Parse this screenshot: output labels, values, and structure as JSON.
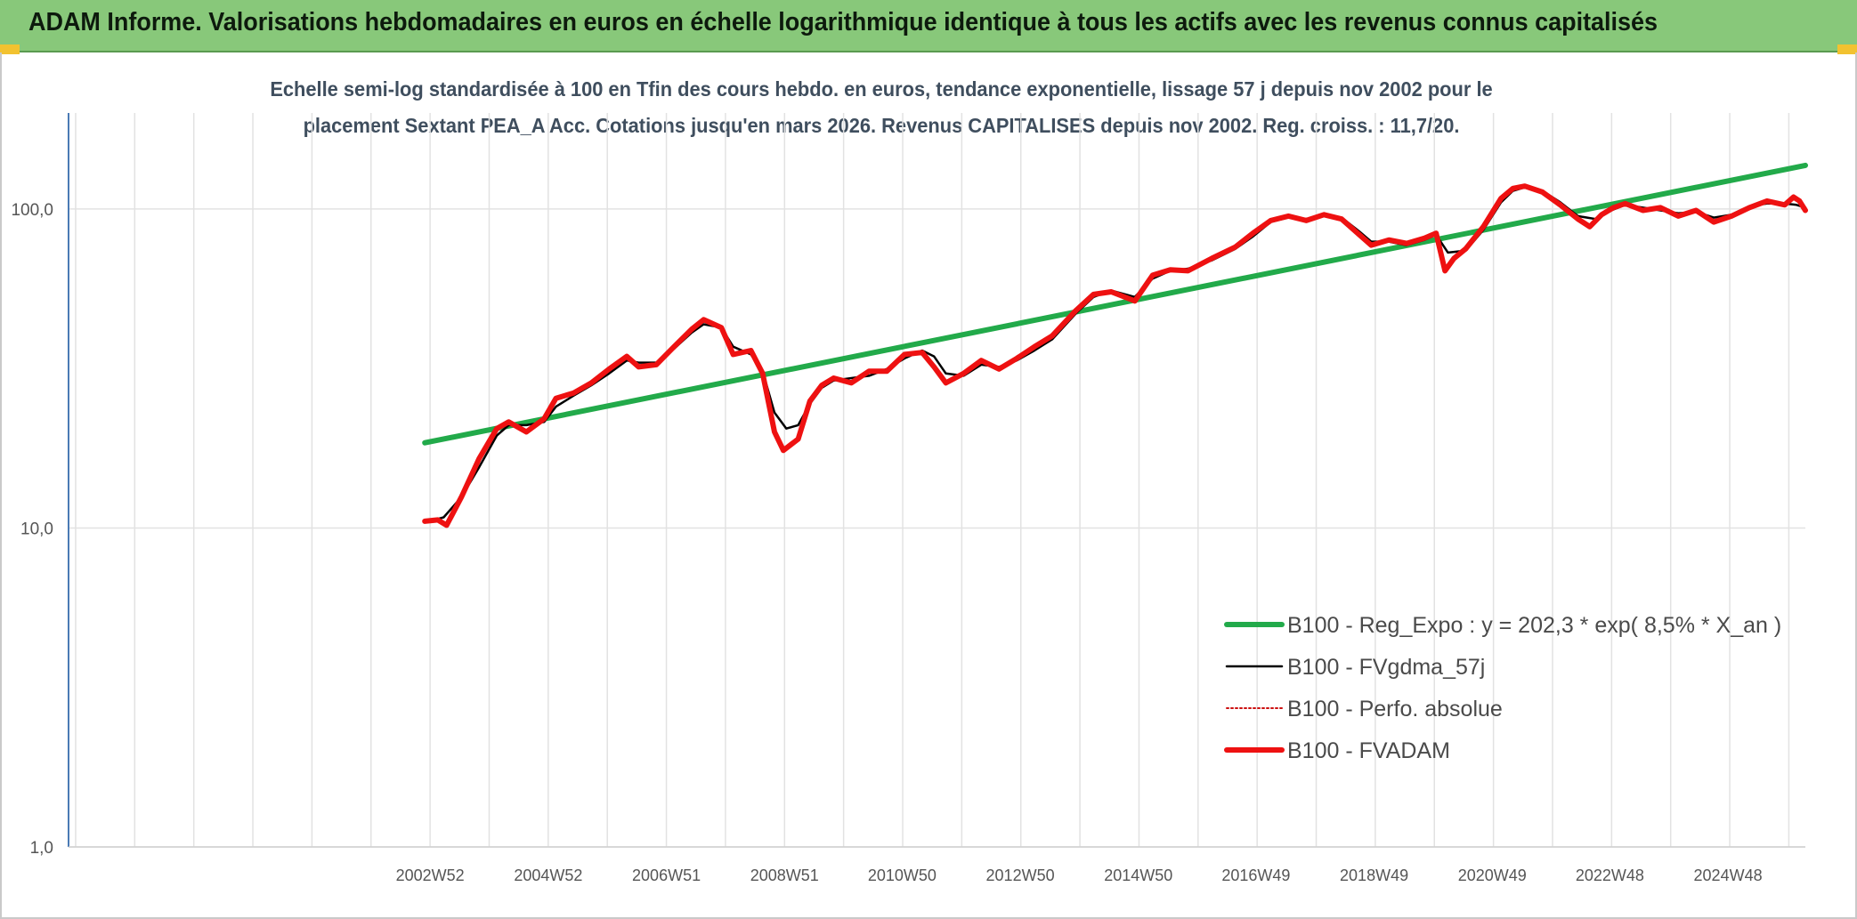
{
  "header": {
    "title": "ADAM Informe. Valorisations hebdomadaires en euros en échelle logarithmique identique à tous les actifs avec les revenus connus capitalisés"
  },
  "colors": {
    "banner": "#88c87a",
    "regression": "#22aa4a",
    "smoothed": "#000000",
    "fvadam": "#ee1111",
    "gridline": "#e2e2e2",
    "axis": "#4a7ab5"
  },
  "chart_data": {
    "type": "line",
    "title_line1": "Echelle semi-log standardisée à 100 en Tfin des cours hebdo. en euros, tendance exponentielle, lissage 57 j depuis nov 2002 pour le",
    "title_line2": "placement Sextant PEA_A Acc. Cotations jusqu'en mars 2026. Revenus CAPITALISES depuis nov 2002. Reg. croiss. : 11,7/20.",
    "y_scale": "log",
    "ylim": [
      1,
      200
    ],
    "y_ticks": [
      {
        "value": 1,
        "label": "1,0"
      },
      {
        "value": 10,
        "label": "10,0"
      },
      {
        "value": 100,
        "label": "100,0"
      }
    ],
    "xlim": [
      1996.85,
      2026.25
    ],
    "x_ticks": [
      {
        "x": 2002.97,
        "label": "2002W52"
      },
      {
        "x": 2004.97,
        "label": "2004W52"
      },
      {
        "x": 2006.97,
        "label": "2006W51"
      },
      {
        "x": 2008.97,
        "label": "2008W51"
      },
      {
        "x": 2010.96,
        "label": "2010W50"
      },
      {
        "x": 2012.96,
        "label": "2012W50"
      },
      {
        "x": 2014.96,
        "label": "2014W50"
      },
      {
        "x": 2016.95,
        "label": "2016W49"
      },
      {
        "x": 2018.95,
        "label": "2018W49"
      },
      {
        "x": 2020.95,
        "label": "2020W49"
      },
      {
        "x": 2022.94,
        "label": "2022W48"
      },
      {
        "x": 2024.94,
        "label": "2024W48"
      }
    ],
    "grid": true,
    "legend_position": "bottom-right",
    "series": [
      {
        "name": "B100 - Reg_Expo : y = 202,3 * exp( 8,5% *  X_an )",
        "color": "#22aa4a",
        "style": "solid-thick",
        "points": [
          [
            2002.88,
            18.5
          ],
          [
            2026.25,
            137
          ]
        ]
      },
      {
        "name": "B100 - FVgdma_57j",
        "color": "#000000",
        "style": "solid-thin",
        "points": [
          [
            2002.88,
            10.4
          ],
          [
            2003.2,
            10.8
          ],
          [
            2003.5,
            12.5
          ],
          [
            2003.8,
            15.5
          ],
          [
            2004.1,
            19.5
          ],
          [
            2004.3,
            21
          ],
          [
            2004.6,
            21
          ],
          [
            2004.9,
            21.5
          ],
          [
            2005.1,
            24
          ],
          [
            2005.4,
            26
          ],
          [
            2005.7,
            28
          ],
          [
            2006.0,
            30.5
          ],
          [
            2006.3,
            33.5
          ],
          [
            2006.5,
            33
          ],
          [
            2006.8,
            33
          ],
          [
            2007.1,
            36.5
          ],
          [
            2007.4,
            41
          ],
          [
            2007.6,
            43.5
          ],
          [
            2007.9,
            42.5
          ],
          [
            2008.1,
            37
          ],
          [
            2008.4,
            35
          ],
          [
            2008.6,
            31
          ],
          [
            2008.8,
            23
          ],
          [
            2009.0,
            20.5
          ],
          [
            2009.2,
            21
          ],
          [
            2009.4,
            24.5
          ],
          [
            2009.6,
            27.5
          ],
          [
            2009.8,
            29
          ],
          [
            2010.1,
            29.5
          ],
          [
            2010.4,
            30
          ],
          [
            2010.7,
            31.5
          ],
          [
            2011.0,
            34
          ],
          [
            2011.3,
            36
          ],
          [
            2011.5,
            34.5
          ],
          [
            2011.7,
            30.5
          ],
          [
            2012.0,
            30
          ],
          [
            2012.3,
            32.5
          ],
          [
            2012.6,
            32
          ],
          [
            2012.9,
            33.5
          ],
          [
            2013.2,
            36
          ],
          [
            2013.5,
            39
          ],
          [
            2013.9,
            47
          ],
          [
            2014.2,
            53
          ],
          [
            2014.5,
            55.5
          ],
          [
            2014.9,
            53
          ],
          [
            2015.2,
            60.5
          ],
          [
            2015.5,
            64
          ],
          [
            2015.8,
            65
          ],
          [
            2016.2,
            69
          ],
          [
            2016.6,
            75
          ],
          [
            2016.9,
            82
          ],
          [
            2017.2,
            91
          ],
          [
            2017.5,
            94
          ],
          [
            2017.8,
            93
          ],
          [
            2018.1,
            95
          ],
          [
            2018.4,
            94
          ],
          [
            2018.7,
            85
          ],
          [
            2018.9,
            79
          ],
          [
            2019.2,
            79
          ],
          [
            2019.5,
            77
          ],
          [
            2019.8,
            80
          ],
          [
            2020.0,
            83
          ],
          [
            2020.2,
            73
          ],
          [
            2020.5,
            74
          ],
          [
            2020.8,
            86
          ],
          [
            2021.1,
            105
          ],
          [
            2021.3,
            114
          ],
          [
            2021.5,
            117
          ],
          [
            2021.8,
            114
          ],
          [
            2022.1,
            105
          ],
          [
            2022.4,
            95
          ],
          [
            2022.7,
            93
          ],
          [
            2022.9,
            98
          ],
          [
            2023.2,
            103
          ],
          [
            2023.5,
            101
          ],
          [
            2023.8,
            99
          ],
          [
            2024.1,
            97
          ],
          [
            2024.4,
            98
          ],
          [
            2024.7,
            94
          ],
          [
            2025.0,
            96
          ],
          [
            2025.3,
            102
          ],
          [
            2025.6,
            104
          ],
          [
            2025.9,
            104
          ],
          [
            2026.1,
            103
          ],
          [
            2026.25,
            101
          ]
        ]
      },
      {
        "name": "B100 - Perfo. absolue",
        "color": "#cc1111",
        "style": "dotted",
        "points": []
      },
      {
        "name": "B100 - FVADAM",
        "color": "#ee1111",
        "style": "solid-thick",
        "points": [
          [
            2002.88,
            10.5
          ],
          [
            2003.1,
            10.6
          ],
          [
            2003.25,
            10.2
          ],
          [
            2003.5,
            12.5
          ],
          [
            2003.8,
            16.5
          ],
          [
            2004.1,
            20.5
          ],
          [
            2004.3,
            21.5
          ],
          [
            2004.6,
            20
          ],
          [
            2004.9,
            22
          ],
          [
            2005.1,
            25.5
          ],
          [
            2005.4,
            26.5
          ],
          [
            2005.7,
            28.5
          ],
          [
            2006.0,
            31.5
          ],
          [
            2006.3,
            34.5
          ],
          [
            2006.5,
            32
          ],
          [
            2006.8,
            32.5
          ],
          [
            2007.1,
            37
          ],
          [
            2007.4,
            42
          ],
          [
            2007.6,
            45
          ],
          [
            2007.9,
            42.5
          ],
          [
            2008.1,
            35
          ],
          [
            2008.4,
            36
          ],
          [
            2008.6,
            30.5
          ],
          [
            2008.8,
            20
          ],
          [
            2008.95,
            17.5
          ],
          [
            2009.2,
            19
          ],
          [
            2009.4,
            25
          ],
          [
            2009.6,
            28
          ],
          [
            2009.8,
            29.5
          ],
          [
            2010.1,
            28.5
          ],
          [
            2010.4,
            31
          ],
          [
            2010.7,
            31
          ],
          [
            2011.0,
            35
          ],
          [
            2011.3,
            35.5
          ],
          [
            2011.5,
            32
          ],
          [
            2011.7,
            28.5
          ],
          [
            2012.0,
            30.5
          ],
          [
            2012.3,
            33.5
          ],
          [
            2012.6,
            31.5
          ],
          [
            2012.9,
            34
          ],
          [
            2013.2,
            37
          ],
          [
            2013.5,
            40
          ],
          [
            2013.9,
            48
          ],
          [
            2014.2,
            54
          ],
          [
            2014.5,
            55
          ],
          [
            2014.9,
            51.5
          ],
          [
            2015.2,
            62
          ],
          [
            2015.5,
            64.5
          ],
          [
            2015.8,
            64
          ],
          [
            2016.2,
            70
          ],
          [
            2016.6,
            76
          ],
          [
            2016.9,
            84
          ],
          [
            2017.2,
            92
          ],
          [
            2017.5,
            95
          ],
          [
            2017.8,
            92
          ],
          [
            2018.1,
            96
          ],
          [
            2018.4,
            93
          ],
          [
            2018.7,
            83
          ],
          [
            2018.9,
            77
          ],
          [
            2019.2,
            80
          ],
          [
            2019.5,
            78
          ],
          [
            2019.8,
            81
          ],
          [
            2020.0,
            84
          ],
          [
            2020.15,
            64
          ],
          [
            2020.3,
            70
          ],
          [
            2020.5,
            75
          ],
          [
            2020.8,
            88
          ],
          [
            2021.1,
            108
          ],
          [
            2021.3,
            116
          ],
          [
            2021.5,
            118
          ],
          [
            2021.8,
            113
          ],
          [
            2022.1,
            103
          ],
          [
            2022.4,
            93
          ],
          [
            2022.6,
            88
          ],
          [
            2022.8,
            96
          ],
          [
            2023.0,
            101
          ],
          [
            2023.2,
            104
          ],
          [
            2023.5,
            99
          ],
          [
            2023.8,
            101
          ],
          [
            2024.1,
            95
          ],
          [
            2024.4,
            99
          ],
          [
            2024.7,
            91
          ],
          [
            2025.0,
            95
          ],
          [
            2025.3,
            101
          ],
          [
            2025.6,
            106
          ],
          [
            2025.9,
            103
          ],
          [
            2026.05,
            109
          ],
          [
            2026.15,
            106
          ],
          [
            2026.25,
            99
          ]
        ]
      }
    ]
  }
}
